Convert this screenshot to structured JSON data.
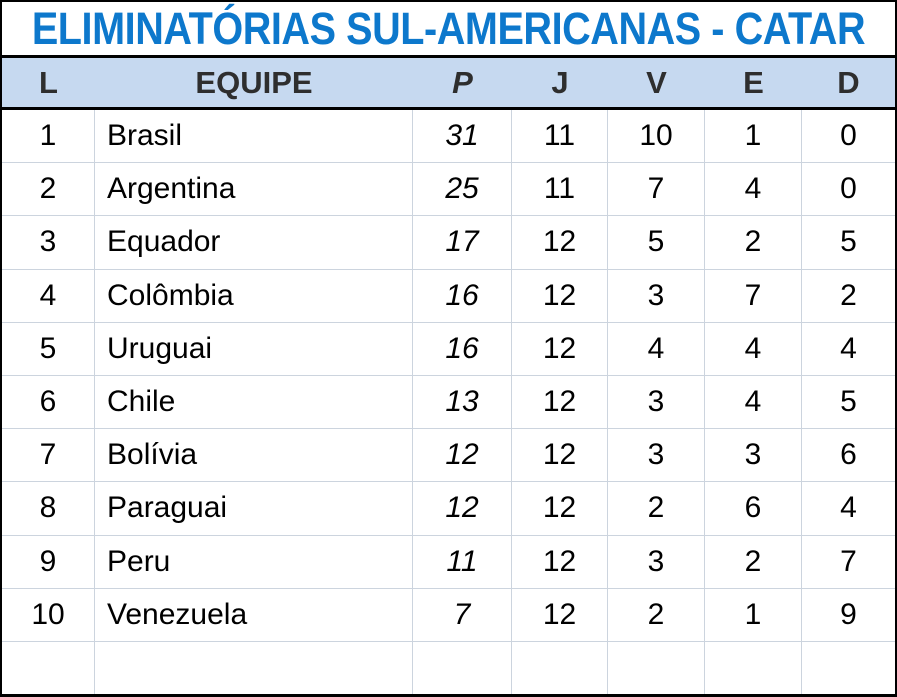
{
  "title": "ELIMINATÓRIAS SUL-AMERICANAS - CATAR",
  "colors": {
    "title-text": "#0D78CC",
    "header-bg": "#C6D9F0",
    "header-text": "#2E2E2E",
    "body-text": "#000000",
    "grid-line": "#CCD4DE",
    "frame": "#000000",
    "sheet-bg": "#FFFFFF"
  },
  "chart_data": {
    "type": "table",
    "title": "ELIMINATÓRIAS SUL-AMERICANAS - CATAR",
    "columns": [
      {
        "key": "pos",
        "label": "L"
      },
      {
        "key": "team",
        "label": "EQUIPE"
      },
      {
        "key": "p",
        "label": "P",
        "italic": true
      },
      {
        "key": "j",
        "label": "J"
      },
      {
        "key": "v",
        "label": "V"
      },
      {
        "key": "e",
        "label": "E"
      },
      {
        "key": "d",
        "label": "D"
      }
    ],
    "rows": [
      {
        "pos": "1",
        "team": "Brasil",
        "p": "31",
        "j": "11",
        "v": "10",
        "e": "1",
        "d": "0"
      },
      {
        "pos": "2",
        "team": "Argentina",
        "p": "25",
        "j": "11",
        "v": "7",
        "e": "4",
        "d": "0"
      },
      {
        "pos": "3",
        "team": "Equador",
        "p": "17",
        "j": "12",
        "v": "5",
        "e": "2",
        "d": "5"
      },
      {
        "pos": "4",
        "team": "Colômbia",
        "p": "16",
        "j": "12",
        "v": "3",
        "e": "7",
        "d": "2"
      },
      {
        "pos": "5",
        "team": "Uruguai",
        "p": "16",
        "j": "12",
        "v": "4",
        "e": "4",
        "d": "4"
      },
      {
        "pos": "6",
        "team": "Chile",
        "p": "13",
        "j": "12",
        "v": "3",
        "e": "4",
        "d": "5"
      },
      {
        "pos": "7",
        "team": "Bolívia",
        "p": "12",
        "j": "12",
        "v": "3",
        "e": "3",
        "d": "6"
      },
      {
        "pos": "8",
        "team": "Paraguai",
        "p": "12",
        "j": "12",
        "v": "2",
        "e": "6",
        "d": "4"
      },
      {
        "pos": "9",
        "team": "Peru",
        "p": "11",
        "j": "12",
        "v": "3",
        "e": "2",
        "d": "7"
      },
      {
        "pos": "10",
        "team": "Venezuela",
        "p": "7",
        "j": "12",
        "v": "2",
        "e": "1",
        "d": "9"
      }
    ],
    "trailing_empty_row": true
  }
}
